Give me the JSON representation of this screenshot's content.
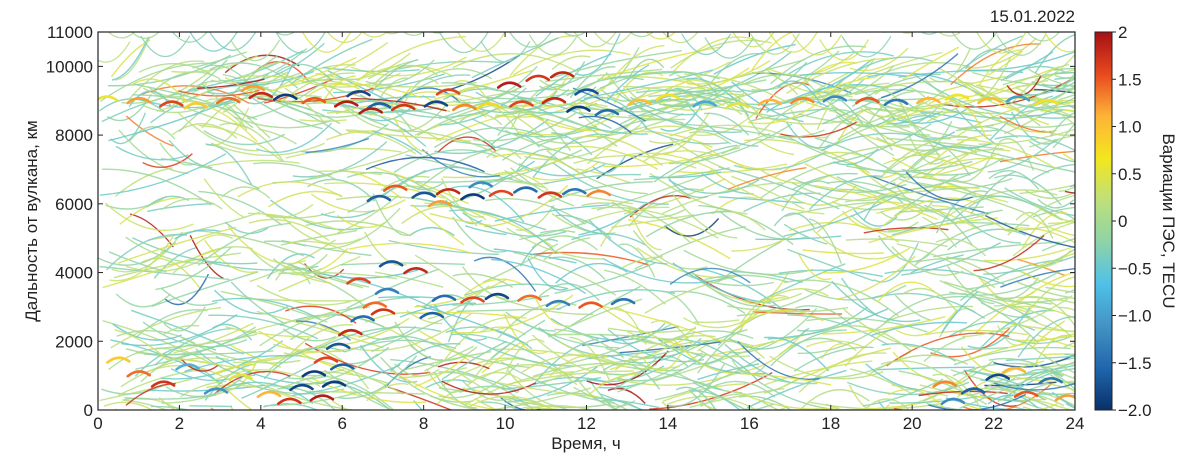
{
  "chart_data": {
    "type": "scatter",
    "title": "15.01.2022",
    "xlabel": "Время, ч",
    "ylabel": "Дальность от вулкана, км",
    "xlim": [
      0,
      24
    ],
    "ylim": [
      0,
      11000
    ],
    "xticks": [
      "0",
      "2",
      "4",
      "6",
      "8",
      "10",
      "12",
      "14",
      "16",
      "18",
      "20",
      "22",
      "24"
    ],
    "yticks": [
      "0",
      "2000",
      "4000",
      "6000",
      "8000",
      "10000",
      "11000"
    ],
    "grid": false,
    "colorbar": {
      "label": "Вариации ПЭС, TECU",
      "range": [
        -2,
        2
      ],
      "ticks": [
        "−2.0",
        "−1.5",
        "−1.0",
        "−0.5",
        "0",
        "0.5",
        "1.0",
        "1.5",
        "2"
      ],
      "colors": [
        "#08306b",
        "#2166ac",
        "#4393c3",
        "#4fc1e8",
        "#8ed3a8",
        "#bfe07a",
        "#f4e61d",
        "#fdb338",
        "#e8491d",
        "#a50f15"
      ]
    },
    "series": [
      {
        "points": [
          [
            0.2,
            9100,
            0.6
          ],
          [
            1.0,
            9050,
            1.2
          ],
          [
            1.8,
            8950,
            1.6
          ],
          [
            2.4,
            8900,
            0.9
          ],
          [
            3.2,
            9050,
            1.4
          ],
          [
            4.0,
            9200,
            1.8
          ],
          [
            4.6,
            9150,
            -1.9
          ],
          [
            5.3,
            9050,
            1.5
          ],
          [
            6.1,
            8950,
            1.9
          ],
          [
            6.9,
            8900,
            -1.6
          ],
          [
            7.5,
            8850,
            1.7
          ],
          [
            8.3,
            8950,
            -1.8
          ],
          [
            9.0,
            8850,
            1.3
          ],
          [
            9.6,
            8900,
            0.8
          ],
          [
            10.4,
            8950,
            1.6
          ],
          [
            11.2,
            9050,
            1.8
          ],
          [
            11.8,
            8800,
            -1.9
          ],
          [
            12.5,
            8700,
            -1.5
          ],
          [
            13.3,
            9000,
            1.0
          ],
          [
            14.0,
            9150,
            0.7
          ],
          [
            14.9,
            8950,
            -0.9
          ],
          [
            15.7,
            8900,
            0.5
          ],
          [
            16.5,
            9000,
            1.1
          ],
          [
            17.3,
            9050,
            1.3
          ],
          [
            18.1,
            9100,
            -1.2
          ],
          [
            18.9,
            9050,
            1.5
          ],
          [
            19.6,
            9000,
            -1.4
          ],
          [
            20.4,
            9050,
            1.1
          ],
          [
            21.1,
            9150,
            0.6
          ],
          [
            21.9,
            9050,
            1.0
          ],
          [
            22.6,
            9100,
            -1.0
          ],
          [
            23.3,
            9000,
            0.7
          ],
          [
            10.1,
            9500,
            1.9
          ],
          [
            10.8,
            9700,
            1.7
          ],
          [
            11.4,
            9800,
            1.8
          ],
          [
            12.0,
            9300,
            -1.7
          ],
          [
            6.4,
            9250,
            -1.8
          ],
          [
            6.7,
            8750,
            1.9
          ],
          [
            8.6,
            9300,
            1.6
          ],
          [
            3.8,
            9400,
            1.2
          ]
        ]
      },
      {
        "points": [
          [
            8.0,
            6300,
            -1.7
          ],
          [
            8.6,
            6400,
            1.8
          ],
          [
            9.2,
            6250,
            -1.9
          ],
          [
            9.9,
            6350,
            1.6
          ],
          [
            10.5,
            6450,
            -1.5
          ],
          [
            11.1,
            6300,
            1.7
          ],
          [
            11.7,
            6400,
            -1.4
          ],
          [
            7.3,
            6500,
            1.5
          ],
          [
            6.9,
            6200,
            -1.6
          ],
          [
            12.3,
            6350,
            1.3
          ],
          [
            8.4,
            6050,
            1.2
          ],
          [
            9.4,
            6600,
            -1.2
          ]
        ]
      },
      {
        "points": [
          [
            6.4,
            3800,
            1.6
          ],
          [
            7.2,
            4300,
            -1.7
          ],
          [
            7.8,
            4100,
            1.8
          ],
          [
            8.5,
            3300,
            -1.5
          ],
          [
            9.2,
            3250,
            1.6
          ],
          [
            9.8,
            3350,
            -1.8
          ],
          [
            10.6,
            3300,
            1.4
          ],
          [
            11.3,
            3150,
            -1.3
          ],
          [
            12.1,
            3100,
            1.5
          ],
          [
            12.9,
            3200,
            -1.4
          ],
          [
            7.0,
            2900,
            1.7
          ],
          [
            8.2,
            2800,
            -1.6
          ]
        ]
      },
      {
        "points": [
          [
            4.7,
            300,
            1.7
          ],
          [
            5.0,
            700,
            -1.8
          ],
          [
            5.3,
            1100,
            -1.9
          ],
          [
            5.6,
            1500,
            1.6
          ],
          [
            5.9,
            1900,
            -1.7
          ],
          [
            6.2,
            2300,
            1.8
          ],
          [
            6.5,
            2700,
            -1.5
          ],
          [
            6.8,
            3100,
            1.4
          ],
          [
            7.1,
            3500,
            -1.3
          ],
          [
            5.8,
            800,
            -1.9
          ],
          [
            6.0,
            1300,
            -1.6
          ],
          [
            5.5,
            400,
            1.9
          ]
        ]
      },
      {
        "points": [
          [
            0.5,
            1500,
            0.9
          ],
          [
            1.0,
            1100,
            1.4
          ],
          [
            1.6,
            800,
            1.7
          ],
          [
            2.2,
            1300,
            -0.8
          ],
          [
            2.9,
            600,
            -1.1
          ],
          [
            3.5,
            1000,
            0.5
          ],
          [
            4.2,
            500,
            1.1
          ],
          [
            20.8,
            800,
            1.3
          ],
          [
            21.5,
            600,
            -1.6
          ],
          [
            22.1,
            1000,
            -1.8
          ],
          [
            22.8,
            500,
            1.5
          ],
          [
            23.4,
            900,
            -1.4
          ],
          [
            23.8,
            400,
            1.2
          ],
          [
            21.0,
            300,
            -1.2
          ],
          [
            22.5,
            1200,
            1.1
          ]
        ]
      }
    ]
  }
}
